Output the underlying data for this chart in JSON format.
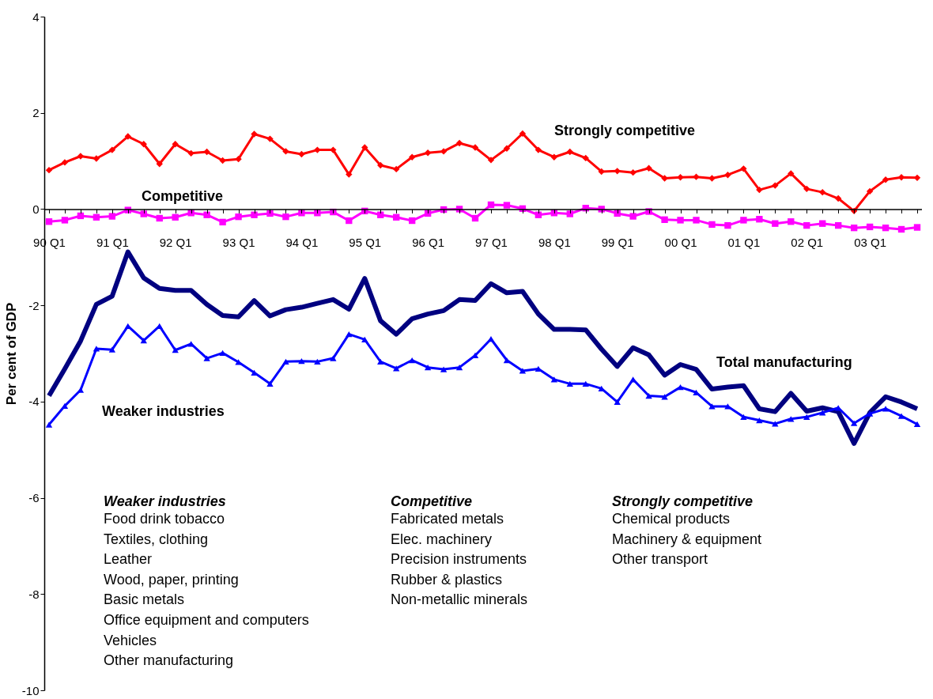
{
  "chart_data": {
    "type": "line",
    "ylabel": "Per cent of GDP",
    "ylim": [
      -10,
      4
    ],
    "yticks": [
      -10,
      -8,
      -6,
      -4,
      -2,
      0,
      2,
      4
    ],
    "grid": false,
    "legend": false,
    "categories": [
      "90 Q1",
      null,
      null,
      null,
      "91 Q1",
      null,
      null,
      null,
      "92 Q1",
      null,
      null,
      null,
      "93 Q1",
      null,
      null,
      null,
      "94 Q1",
      null,
      null,
      null,
      "95 Q1",
      null,
      null,
      null,
      "96 Q1",
      null,
      null,
      null,
      "97 Q1",
      null,
      null,
      null,
      "98 Q1",
      null,
      null,
      null,
      "99 Q1",
      null,
      null,
      null,
      "00 Q1",
      null,
      null,
      null,
      "01 Q1",
      null,
      null,
      null,
      "02 Q1",
      null,
      null,
      null,
      "03 Q1",
      null,
      null,
      null
    ],
    "series": [
      {
        "name": "Strongly competitive",
        "color": "#ff0000",
        "marker": "diamond",
        "values": [
          0.81,
          0.97,
          1.1,
          1.05,
          1.23,
          1.51,
          1.35,
          0.94,
          1.35,
          1.16,
          1.19,
          1.01,
          1.04,
          1.56,
          1.46,
          1.2,
          1.14,
          1.23,
          1.23,
          0.72,
          1.28,
          0.91,
          0.83,
          1.08,
          1.17,
          1.2,
          1.37,
          1.28,
          1.02,
          1.26,
          1.57,
          1.23,
          1.08,
          1.19,
          1.06,
          0.78,
          0.79,
          0.76,
          0.85,
          0.64,
          0.66,
          0.67,
          0.64,
          0.71,
          0.84,
          0.4,
          0.49,
          0.74,
          0.42,
          0.35,
          0.22,
          -0.04,
          0.37,
          0.61,
          0.66,
          0.65
        ]
      },
      {
        "name": "Competitive",
        "color": "#ff00ff",
        "marker": "square",
        "values": [
          -0.26,
          -0.23,
          -0.14,
          -0.17,
          -0.15,
          -0.02,
          -0.1,
          -0.19,
          -0.17,
          -0.08,
          -0.12,
          -0.27,
          -0.16,
          -0.12,
          -0.09,
          -0.16,
          -0.08,
          -0.08,
          -0.06,
          -0.24,
          -0.04,
          -0.12,
          -0.17,
          -0.24,
          -0.09,
          -0.01,
          0.0,
          -0.19,
          0.09,
          0.08,
          0.01,
          -0.12,
          -0.08,
          -0.1,
          0.02,
          0.0,
          -0.09,
          -0.15,
          -0.05,
          -0.22,
          -0.23,
          -0.23,
          -0.32,
          -0.34,
          -0.23,
          -0.21,
          -0.3,
          -0.26,
          -0.34,
          -0.3,
          -0.34,
          -0.39,
          -0.37,
          -0.39,
          -0.42,
          -0.38
        ]
      },
      {
        "name": "Total manufacturing",
        "color": "#000080",
        "marker": "none",
        "values": [
          -3.88,
          -3.32,
          -2.74,
          -1.98,
          -1.81,
          -0.89,
          -1.43,
          -1.65,
          -1.69,
          -1.69,
          -1.98,
          -2.21,
          -2.24,
          -1.9,
          -2.22,
          -2.09,
          -2.04,
          -1.96,
          -1.88,
          -2.08,
          -1.44,
          -2.32,
          -2.6,
          -2.28,
          -2.18,
          -2.11,
          -1.88,
          -1.9,
          -1.55,
          -1.74,
          -1.71,
          -2.18,
          -2.5,
          -2.5,
          -2.51,
          -2.91,
          -3.27,
          -2.88,
          -3.03,
          -3.45,
          -3.23,
          -3.33,
          -3.74,
          -3.7,
          -3.67,
          -4.15,
          -4.21,
          -3.83,
          -4.2,
          -4.13,
          -4.21,
          -4.87,
          -4.23,
          -3.9,
          -4.01,
          -4.15
        ]
      },
      {
        "name": "Weaker industries",
        "color": "#0000ff",
        "marker": "triangle",
        "values": [
          -4.48,
          -4.09,
          -3.76,
          -2.9,
          -2.92,
          -2.43,
          -2.73,
          -2.43,
          -2.93,
          -2.8,
          -3.1,
          -2.99,
          -3.18,
          -3.4,
          -3.63,
          -3.17,
          -3.16,
          -3.17,
          -3.1,
          -2.6,
          -2.71,
          -3.17,
          -3.31,
          -3.14,
          -3.29,
          -3.33,
          -3.29,
          -3.04,
          -2.7,
          -3.14,
          -3.36,
          -3.32,
          -3.54,
          -3.63,
          -3.63,
          -3.73,
          -4.01,
          -3.54,
          -3.88,
          -3.9,
          -3.7,
          -3.81,
          -4.1,
          -4.1,
          -4.32,
          -4.39,
          -4.46,
          -4.36,
          -4.32,
          -4.23,
          -4.13,
          -4.45,
          -4.25,
          -4.15,
          -4.3,
          -4.47
        ]
      }
    ],
    "annotations": [
      "Weaker industries\nFood drink tobacco\nTextiles, clothing\nLeather\nWood, paper, printing\nBasic metals\nOffice equipment and computers\nVehicles\nOther manufacturing",
      "Competitive\nFabricated metals\nElec. machinery\nPrecision instruments\nRubber & plastics\nNon-metallic minerals",
      "Strongly competitive\nChemical products\nMachinery & equipment\nOther transport"
    ]
  }
}
